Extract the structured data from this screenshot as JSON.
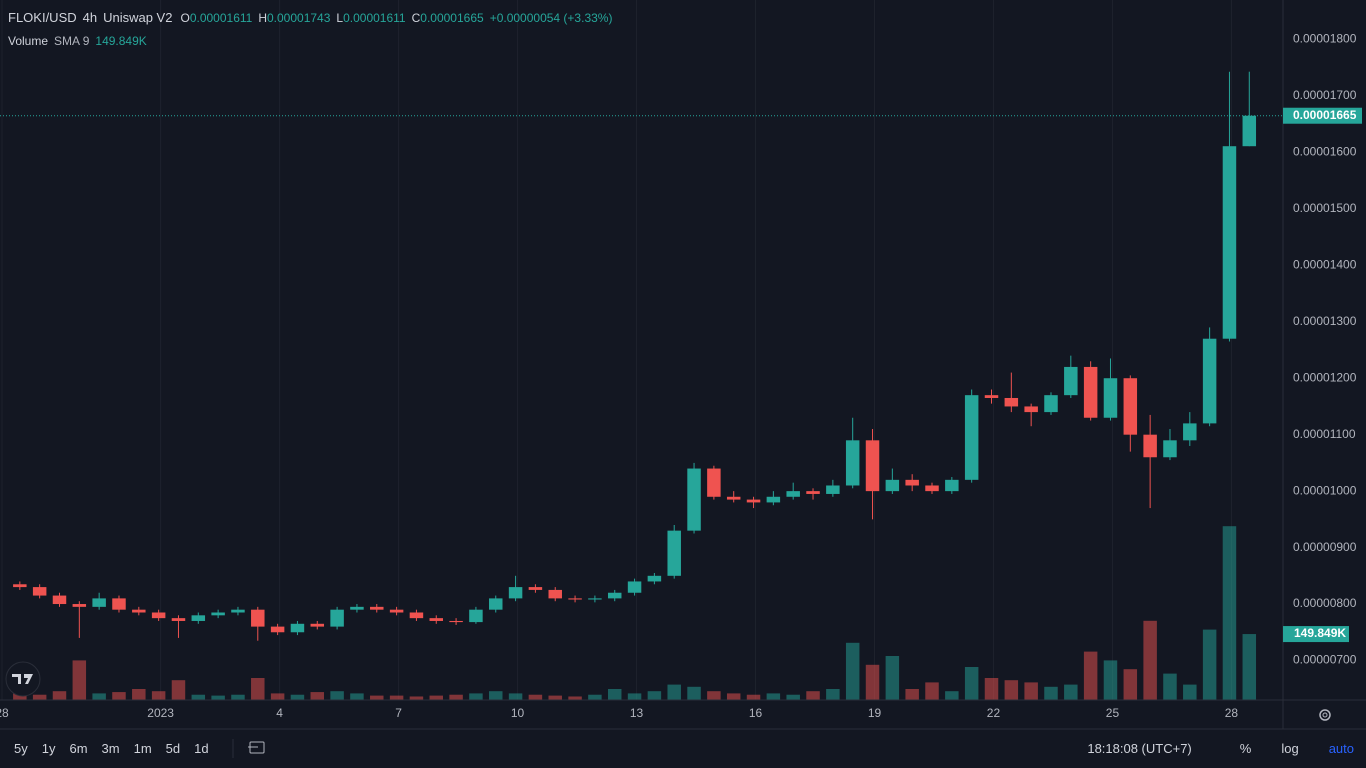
{
  "legend": {
    "symbol": "FLOKI/USD",
    "interval": "4h",
    "exchange": "Uniswap V2",
    "open_label": "O",
    "open": "0.00001611",
    "high_label": "H",
    "high": "0.00001743",
    "low_label": "L",
    "low": "0.00001611",
    "close_label": "C",
    "close": "0.00001665",
    "change": "+0.00000054 (+3.33%)",
    "volume_title": "Volume",
    "volume_sma": "SMA 9",
    "volume": "149.849K"
  },
  "toolbar": {
    "ranges": [
      "5y",
      "1y",
      "6m",
      "3m",
      "1m",
      "5d",
      "1d"
    ],
    "clock": "18:18:08 (UTC+7)",
    "percent": "%",
    "log": "log",
    "auto": "auto"
  },
  "chart_data": {
    "type": "candlestick",
    "up_color": "#26a69a",
    "down_color": "#ef5350",
    "grid": true,
    "xlim": [
      -0.05,
      32.3
    ],
    "xticks": [
      {
        "value": 0,
        "label": "28"
      },
      {
        "value": 4,
        "label": "2023"
      },
      {
        "value": 7,
        "label": "4"
      },
      {
        "value": 10,
        "label": "7"
      },
      {
        "value": 13,
        "label": "10"
      },
      {
        "value": 16,
        "label": "13"
      },
      {
        "value": 19,
        "label": "16"
      },
      {
        "value": 22,
        "label": "19"
      },
      {
        "value": 25,
        "label": "22"
      },
      {
        "value": 28,
        "label": "25"
      },
      {
        "value": 31,
        "label": "28"
      }
    ],
    "ylim": [
      6.3e-06,
      1.87e-05
    ],
    "yticks": [
      {
        "value": 7e-06,
        "label": "0.00000700"
      },
      {
        "value": 8e-06,
        "label": "0.00000800"
      },
      {
        "value": 9e-06,
        "label": "0.00000900"
      },
      {
        "value": 1e-05,
        "label": "0.00001000"
      },
      {
        "value": 1.1e-05,
        "label": "0.00001100"
      },
      {
        "value": 1.2e-05,
        "label": "0.00001200"
      },
      {
        "value": 1.3e-05,
        "label": "0.00001300"
      },
      {
        "value": 1.4e-05,
        "label": "0.00001400"
      },
      {
        "value": 1.5e-05,
        "label": "0.00001500"
      },
      {
        "value": 1.6e-05,
        "label": "0.00001600"
      },
      {
        "value": 1.7e-05,
        "label": "0.00001700"
      },
      {
        "value": 1.8e-05,
        "label": "0.00001800"
      }
    ],
    "volume_lim": [
      0,
      600000
    ],
    "x": [
      0.45,
      0.95,
      1.45,
      1.95,
      2.45,
      2.95,
      3.45,
      3.95,
      4.45,
      4.95,
      5.45,
      5.95,
      6.45,
      6.95,
      7.45,
      7.95,
      8.45,
      8.95,
      9.45,
      9.95,
      10.45,
      10.95,
      11.45,
      11.95,
      12.45,
      12.95,
      13.45,
      13.95,
      14.45,
      14.95,
      15.45,
      15.95,
      16.45,
      16.95,
      17.45,
      17.95,
      18.45,
      18.95,
      19.45,
      19.95,
      20.45,
      20.95,
      21.45,
      21.95,
      22.45,
      22.95,
      23.45,
      23.95,
      24.45,
      24.95,
      25.45,
      25.95,
      26.45,
      26.95,
      27.45,
      27.95,
      28.45,
      28.95,
      29.45,
      29.95,
      30.45,
      30.95,
      31.45
    ],
    "open": [
      8.35e-06,
      8.3e-06,
      8.15e-06,
      8e-06,
      7.95e-06,
      8.1e-06,
      7.9e-06,
      7.85e-06,
      7.75e-06,
      7.7e-06,
      7.8e-06,
      7.85e-06,
      7.9e-06,
      7.6e-06,
      7.5e-06,
      7.65e-06,
      7.6e-06,
      7.9e-06,
      7.95e-06,
      7.9e-06,
      7.85e-06,
      7.75e-06,
      7.7e-06,
      7.68e-06,
      7.9e-06,
      8.1e-06,
      8.3e-06,
      8.25e-06,
      8.1e-06,
      8.08e-06,
      8.1e-06,
      8.2e-06,
      8.4e-06,
      8.5e-06,
      9.3e-06,
      1.04e-05,
      9.9e-06,
      9.85e-06,
      9.8e-06,
      9.9e-06,
      1e-05,
      9.95e-06,
      1.01e-05,
      1.09e-05,
      1e-05,
      1.02e-05,
      1.01e-05,
      1e-05,
      1.02e-05,
      1.17e-05,
      1.165e-05,
      1.15e-05,
      1.14e-05,
      1.17e-05,
      1.22e-05,
      1.13e-05,
      1.2e-05,
      1.1e-05,
      1.06e-05,
      1.09e-05,
      1.12e-05,
      1.27e-05,
      1.611e-05
    ],
    "high": [
      8.4e-06,
      8.35e-06,
      8.2e-06,
      8.05e-06,
      8.2e-06,
      8.15e-06,
      7.95e-06,
      7.9e-06,
      7.8e-06,
      7.85e-06,
      7.9e-06,
      7.95e-06,
      7.95e-06,
      7.65e-06,
      7.7e-06,
      7.7e-06,
      7.95e-06,
      8e-06,
      8e-06,
      7.95e-06,
      7.9e-06,
      7.8e-06,
      7.75e-06,
      7.95e-06,
      8.15e-06,
      8.5e-06,
      8.35e-06,
      8.3e-06,
      8.15e-06,
      8.15e-06,
      8.25e-06,
      8.45e-06,
      8.55e-06,
      9.4e-06,
      1.05e-05,
      1.045e-05,
      1e-05,
      9.9e-06,
      1e-05,
      1.015e-05,
      1.005e-05,
      1.02e-05,
      1.13e-05,
      1.11e-05,
      1.04e-05,
      1.03e-05,
      1.015e-05,
      1.025e-05,
      1.18e-05,
      1.18e-05,
      1.21e-05,
      1.155e-05,
      1.175e-05,
      1.24e-05,
      1.23e-05,
      1.235e-05,
      1.205e-05,
      1.135e-05,
      1.11e-05,
      1.14e-05,
      1.29e-05,
      1.743e-05,
      1.743e-05
    ],
    "low": [
      8.25e-06,
      8.1e-06,
      7.95e-06,
      7.4e-06,
      7.9e-06,
      7.85e-06,
      7.8e-06,
      7.7e-06,
      7.4e-06,
      7.65e-06,
      7.75e-06,
      7.8e-06,
      7.35e-06,
      7.45e-06,
      7.45e-06,
      7.55e-06,
      7.55e-06,
      7.85e-06,
      7.85e-06,
      7.8e-06,
      7.7e-06,
      7.65e-06,
      7.63e-06,
      7.65e-06,
      7.85e-06,
      8.05e-06,
      8.2e-06,
      8.05e-06,
      8.03e-06,
      8.03e-06,
      8.05e-06,
      8.15e-06,
      8.35e-06,
      8.45e-06,
      9.25e-06,
      9.85e-06,
      9.8e-06,
      9.7e-06,
      9.75e-06,
      9.85e-06,
      9.85e-06,
      9.9e-06,
      1.005e-05,
      9.5e-06,
      9.95e-06,
      1e-05,
      9.95e-06,
      9.95e-06,
      1.015e-05,
      1.155e-05,
      1.14e-05,
      1.115e-05,
      1.135e-05,
      1.165e-05,
      1.125e-05,
      1.125e-05,
      1.07e-05,
      9.7e-06,
      1.055e-05,
      1.08e-05,
      1.115e-05,
      1.265e-05,
      1.611e-05
    ],
    "close": [
      8.3e-06,
      8.15e-06,
      8e-06,
      7.95e-06,
      8.1e-06,
      7.9e-06,
      7.85e-06,
      7.75e-06,
      7.7e-06,
      7.8e-06,
      7.85e-06,
      7.9e-06,
      7.6e-06,
      7.5e-06,
      7.65e-06,
      7.6e-06,
      7.9e-06,
      7.95e-06,
      7.9e-06,
      7.85e-06,
      7.75e-06,
      7.7e-06,
      7.68e-06,
      7.9e-06,
      8.1e-06,
      8.3e-06,
      8.25e-06,
      8.1e-06,
      8.08e-06,
      8.1e-06,
      8.2e-06,
      8.4e-06,
      8.5e-06,
      9.3e-06,
      1.04e-05,
      9.9e-06,
      9.85e-06,
      9.8e-06,
      9.9e-06,
      1e-05,
      9.95e-06,
      1.01e-05,
      1.09e-05,
      1e-05,
      1.02e-05,
      1.01e-05,
      1e-05,
      1.02e-05,
      1.17e-05,
      1.165e-05,
      1.15e-05,
      1.14e-05,
      1.17e-05,
      1.22e-05,
      1.13e-05,
      1.2e-05,
      1.1e-05,
      1.06e-05,
      1.09e-05,
      1.12e-05,
      1.27e-05,
      1.611e-05,
      1.665e-05
    ],
    "volume": [
      15000,
      12000,
      20000,
      90000,
      15000,
      18000,
      25000,
      20000,
      45000,
      12000,
      10000,
      12000,
      50000,
      15000,
      12000,
      18000,
      20000,
      15000,
      10000,
      10000,
      8000,
      10000,
      12000,
      15000,
      20000,
      15000,
      12000,
      10000,
      8000,
      12000,
      25000,
      15000,
      20000,
      35000,
      30000,
      20000,
      15000,
      12000,
      15000,
      12000,
      20000,
      25000,
      130000,
      80000,
      100000,
      25000,
      40000,
      20000,
      75000,
      50000,
      45000,
      40000,
      30000,
      35000,
      110000,
      90000,
      70000,
      180000,
      60000,
      35000,
      160000,
      395000,
      149849
    ]
  }
}
